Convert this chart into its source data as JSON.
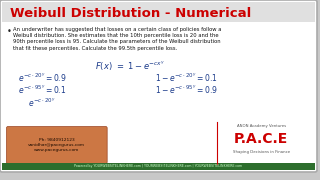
{
  "title": "Weibull Distribution - Numerical",
  "title_color": "#cc0000",
  "title_fontsize": 9.5,
  "bg_color": "#c8c8c8",
  "slide_bg": "#ffffff",
  "border_color": "#aaaaaa",
  "bullet_text_lines": [
    "An underwriter has suggested that losses on a certain class of policies follow a",
    "Weibull distribution. She estimates that the 10th percentile loss is 20 and the",
    "90th percentile loss is 95. Calculate the parameters of the Weibull distribution",
    "that fit these percentiles. Calculate the 99.5th percentile loss."
  ],
  "contact_box_color": "#cc7744",
  "contact_text": "Ph: 9840912123\nvanidhar@pacegurus.com\nwww.pacegurus.com",
  "contact_text_color": "#1a0a00",
  "pace_text": "P.A.C.E",
  "pace_subtitle": "Shaping Decisions in Finance",
  "pace_header": "ANON Academy Ventures",
  "pace_color": "#cc0000",
  "bottom_bar_color": "#2d6e2d",
  "bottom_bar_text": "Powered by YOURWEBSITELINKHERE.com | YOURWEBSITELINKHERE.com | YOURWEBSITELINKHERE.com",
  "handwriting_color": "#1a3a8a",
  "title_bar_color": "#e0e0e0"
}
